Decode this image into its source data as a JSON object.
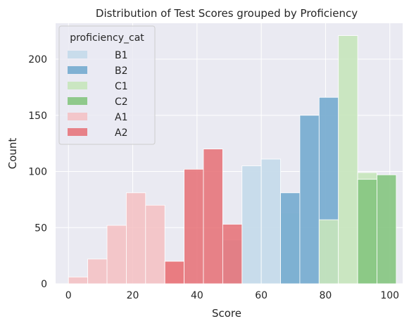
{
  "chart_data": {
    "type": "bar",
    "title": "Distribution of Test Scores grouped by Proficiency",
    "xlabel": "Score",
    "ylabel": "Count",
    "xlim": [
      -4,
      104
    ],
    "ylim": [
      0,
      232
    ],
    "xticks": [
      0,
      20,
      40,
      60,
      80,
      100
    ],
    "yticks": [
      0,
      50,
      100,
      150,
      200
    ],
    "grid": true,
    "background": "#eaeaf2",
    "bin_width": 6,
    "legend": {
      "title": "proficiency_cat",
      "placement": "top-left"
    },
    "series": [
      {
        "name": "B1",
        "color": "#c6dbea",
        "opacity": 0.95,
        "bins": [
          [
            48,
            39
          ],
          [
            54,
            105
          ],
          [
            60,
            111
          ],
          [
            66,
            63
          ]
        ]
      },
      {
        "name": "B2",
        "color": "#7aaed1",
        "opacity": 0.95,
        "bins": [
          [
            66,
            81
          ],
          [
            72,
            150
          ],
          [
            78,
            166
          ]
        ]
      },
      {
        "name": "C1",
        "color": "#c6e6bb",
        "opacity": 0.9,
        "bins": [
          [
            78,
            57
          ],
          [
            84,
            221
          ],
          [
            90,
            99
          ]
        ]
      },
      {
        "name": "C2",
        "color": "#85c580",
        "opacity": 0.9,
        "bins": [
          [
            90,
            93
          ],
          [
            96,
            97
          ]
        ]
      },
      {
        "name": "A1",
        "color": "#f4bfc2",
        "opacity": 0.85,
        "bins": [
          [
            0,
            6
          ],
          [
            6,
            22
          ],
          [
            12,
            52
          ],
          [
            18,
            81
          ],
          [
            24,
            70
          ],
          [
            30,
            20
          ]
        ]
      },
      {
        "name": "A2",
        "color": "#e66f74",
        "opacity": 0.85,
        "bins": [
          [
            30,
            20
          ],
          [
            36,
            102
          ],
          [
            42,
            120
          ],
          [
            48,
            53
          ]
        ]
      }
    ]
  }
}
